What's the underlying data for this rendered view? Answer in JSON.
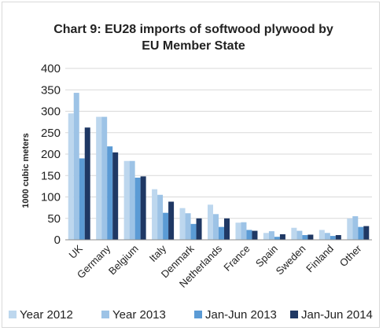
{
  "chart_data": {
    "type": "bar",
    "title_lines": [
      "Chart 9: EU28 imports of softwood plywood by",
      "EU Member State"
    ],
    "ylabel": "1000 cubic meters",
    "xlabel": "",
    "ylim": [
      0,
      400
    ],
    "yticks": [
      "0",
      "50",
      "100",
      "150",
      "200",
      "250",
      "300",
      "350",
      "400"
    ],
    "grid": true,
    "legend_position": "bottom",
    "categories": [
      "UK",
      "Germany",
      "Belgium",
      "Italy",
      "Denmark",
      "Netherlands",
      "France",
      "Spain",
      "Sweden",
      "Finland",
      "Other"
    ],
    "series": [
      {
        "name": "Year 2012",
        "color": "#bdd7ee",
        "values": [
          295,
          287,
          184,
          118,
          74,
          82,
          40,
          16,
          28,
          23,
          50
        ]
      },
      {
        "name": "Year 2013",
        "color": "#9dc3e6",
        "values": [
          343,
          287,
          184,
          105,
          62,
          60,
          41,
          20,
          21,
          16,
          55
        ]
      },
      {
        "name": "Jan-Jun 2013",
        "color": "#5b9bd5",
        "values": [
          190,
          218,
          145,
          63,
          37,
          30,
          23,
          7,
          11,
          9,
          30
        ]
      },
      {
        "name": "Jan-Jun 2014",
        "color": "#1f3864",
        "values": [
          262,
          204,
          148,
          89,
          50,
          50,
          21,
          13,
          12,
          11,
          32
        ]
      }
    ]
  }
}
